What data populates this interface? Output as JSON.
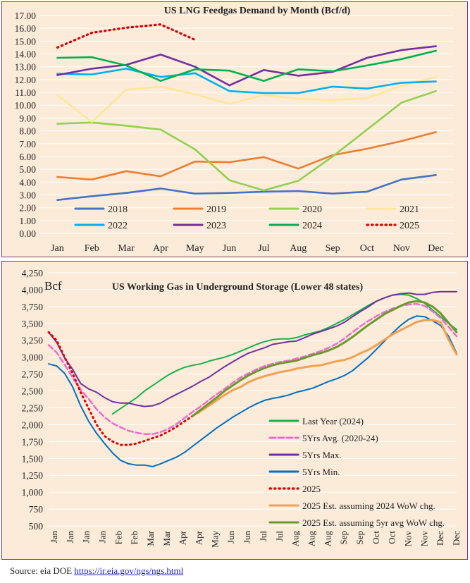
{
  "colors": {
    "panel_bg": "#fcebd9",
    "panel_border": "#6b3d7e",
    "grid": "#ffffff",
    "s2018": "#4472c4",
    "s2019": "#ed7d31",
    "s2020": "#92d050",
    "s2021": "#ffe699",
    "s2022": "#00b0f0",
    "s2023": "#7030a0",
    "s2024": "#00b050",
    "s2025": "#e00000",
    "last_year": "#17b24a",
    "avg5": "#f06ad0",
    "max5": "#7030a0",
    "min5": "#0070c0",
    "est2024": "#f4a050",
    "est5yr": "#6a9a2a"
  },
  "source": {
    "prefix": "Source: eia DOE",
    "link": "https://ir.eia.gov/ngs/ngs.html"
  },
  "chart_data": [
    {
      "type": "line",
      "title": "US LNG Feedgas Demand by Month (Bcf/d)",
      "xlabel": "",
      "ylabel": "",
      "categories": [
        "Jan",
        "Feb",
        "Mar",
        "Apr",
        "May",
        "Jun",
        "Jul",
        "Aug",
        "Sep",
        "Oct",
        "Nov",
        "Dec"
      ],
      "ylim": [
        0,
        17
      ],
      "ytick_step": 1,
      "ytick_labels": [
        "0.00",
        "1.00",
        "2.00",
        "3.00",
        "4.00",
        "5.00",
        "6.00",
        "7.00",
        "8.00",
        "9.00",
        "10.00",
        "11.00",
        "12.00",
        "13.00",
        "14.00",
        "15.00",
        "16.00",
        "17.00"
      ],
      "grid": true,
      "legend_position": "bottom-inside",
      "series": [
        {
          "name": "2018",
          "color_key": "s2018",
          "style": "solid",
          "values": [
            2.6,
            2.9,
            3.15,
            3.5,
            3.1,
            3.15,
            3.25,
            3.3,
            3.1,
            3.25,
            4.2,
            4.55
          ]
        },
        {
          "name": "2019",
          "color_key": "s2019",
          "style": "solid",
          "values": [
            4.4,
            4.2,
            4.85,
            4.45,
            5.6,
            5.55,
            5.95,
            5.05,
            6.1,
            6.6,
            7.2,
            7.9
          ]
        },
        {
          "name": "2020",
          "color_key": "s2020",
          "style": "solid",
          "values": [
            8.55,
            8.65,
            8.4,
            8.1,
            6.55,
            4.15,
            3.35,
            4.1,
            6.0,
            8.1,
            10.2,
            11.1
          ]
        },
        {
          "name": "2021",
          "color_key": "s2021",
          "style": "solid",
          "values": [
            10.8,
            8.7,
            11.2,
            11.45,
            10.85,
            10.1,
            10.8,
            10.5,
            10.4,
            10.55,
            11.5,
            12.2
          ]
        },
        {
          "name": "2022",
          "color_key": "s2022",
          "style": "solid",
          "values": [
            12.45,
            12.4,
            12.85,
            12.2,
            12.5,
            11.1,
            10.95,
            10.95,
            11.45,
            11.3,
            11.75,
            11.85
          ]
        },
        {
          "name": "2023",
          "color_key": "s2023",
          "style": "solid",
          "values": [
            12.35,
            12.85,
            13.15,
            13.95,
            13.0,
            11.55,
            12.75,
            12.3,
            12.6,
            13.7,
            14.3,
            14.6
          ]
        },
        {
          "name": "2024",
          "color_key": "s2024",
          "style": "solid",
          "values": [
            13.7,
            13.75,
            13.1,
            11.9,
            12.8,
            12.7,
            11.9,
            12.8,
            12.65,
            13.1,
            13.6,
            14.25
          ]
        },
        {
          "name": "2025",
          "color_key": "s2025",
          "style": "dotted",
          "values": [
            14.5,
            15.65,
            16.05,
            16.3,
            15.1,
            null,
            null,
            null,
            null,
            null,
            null,
            null
          ]
        }
      ]
    },
    {
      "type": "line",
      "title": "US Working Gas in Underground Storage (Lower 48 states)",
      "xlabel": "",
      "ylabel": "Bcf",
      "categories": [
        "Jan",
        "Jan",
        "Jan",
        "Jan",
        "Feb",
        "Feb",
        "Mar",
        "Mar",
        "Apr",
        "Apr",
        "May",
        "Jun",
        "Jun",
        "Jul",
        "Jul",
        "Aug",
        "Aug",
        "Aug",
        "Sep",
        "Sep",
        "Oct",
        "Oct",
        "Nov",
        "Nov",
        "Dec",
        "Dec"
      ],
      "ylim": [
        500,
        4250
      ],
      "ytick_step": 250,
      "ytick_labels": [
        "500",
        "750",
        "1,000",
        "1,250",
        "1,500",
        "1,750",
        "2,000",
        "2,250",
        "2,500",
        "2,750",
        "3,000",
        "3,250",
        "3,500",
        "3,750",
        "4,000",
        "4,250"
      ],
      "grid": true,
      "legend_position": "bottom-right-inside",
      "series": [
        {
          "name": "Last Year (2024)",
          "color_key": "last_year",
          "style": "solid",
          "width": 2,
          "x": [
            9,
            10,
            11,
            12,
            13,
            14,
            15,
            16,
            17,
            18,
            19,
            20,
            21,
            22,
            23,
            24,
            25,
            26,
            27,
            28,
            29,
            30,
            31,
            32,
            33,
            34,
            35,
            36,
            37,
            38,
            39,
            40,
            41,
            42,
            43,
            44,
            45,
            46,
            47,
            48,
            49,
            50,
            51,
            52
          ],
          "values": [
            2160,
            2240,
            2320,
            2400,
            2500,
            2580,
            2660,
            2740,
            2800,
            2850,
            2880,
            2900,
            2940,
            2970,
            3000,
            3040,
            3090,
            3140,
            3190,
            3230,
            3260,
            3270,
            3270,
            3290,
            3330,
            3360,
            3390,
            3440,
            3500,
            3560,
            3630,
            3700,
            3770,
            3830,
            3880,
            3920,
            3930,
            3920,
            3870,
            3800,
            3700,
            3600,
            3500,
            3410
          ]
        },
        {
          "name": "5Yrs Avg. (2020-24)",
          "color_key": "avg5",
          "style": "dashed",
          "width": 2.5,
          "x": [
            1,
            2,
            3,
            4,
            5,
            6,
            7,
            8,
            9,
            10,
            11,
            12,
            13,
            14,
            15,
            16,
            17,
            18,
            19,
            20,
            21,
            22,
            23,
            24,
            25,
            26,
            27,
            28,
            29,
            30,
            31,
            32,
            33,
            34,
            35,
            36,
            37,
            38,
            39,
            40,
            41,
            42,
            43,
            44,
            45,
            46,
            47,
            48,
            49,
            50,
            51,
            52
          ],
          "values": [
            3180,
            3070,
            2890,
            2700,
            2520,
            2380,
            2230,
            2110,
            2020,
            1960,
            1910,
            1880,
            1860,
            1860,
            1890,
            1940,
            2010,
            2100,
            2190,
            2270,
            2360,
            2450,
            2530,
            2620,
            2700,
            2760,
            2820,
            2870,
            2900,
            2930,
            2950,
            2980,
            3010,
            3050,
            3090,
            3140,
            3200,
            3280,
            3370,
            3460,
            3540,
            3610,
            3670,
            3720,
            3760,
            3780,
            3790,
            3760,
            3680,
            3580,
            3450,
            3310
          ]
        },
        {
          "name": "5Yrs Max.",
          "color_key": "max5",
          "style": "solid",
          "width": 2,
          "x": [
            1,
            2,
            3,
            4,
            5,
            6,
            7,
            8,
            9,
            10,
            11,
            12,
            13,
            14,
            15,
            16,
            17,
            18,
            19,
            20,
            21,
            22,
            23,
            24,
            25,
            26,
            27,
            28,
            29,
            30,
            31,
            32,
            33,
            34,
            35,
            36,
            37,
            38,
            39,
            40,
            41,
            42,
            43,
            44,
            45,
            46,
            47,
            48,
            49,
            50,
            51,
            52
          ],
          "values": [
            3370,
            3220,
            2990,
            2820,
            2610,
            2530,
            2480,
            2400,
            2340,
            2320,
            2320,
            2290,
            2270,
            2280,
            2320,
            2390,
            2450,
            2510,
            2570,
            2640,
            2700,
            2780,
            2860,
            2930,
            3000,
            3060,
            3100,
            3140,
            3190,
            3210,
            3230,
            3240,
            3290,
            3340,
            3380,
            3420,
            3460,
            3520,
            3600,
            3680,
            3750,
            3830,
            3880,
            3920,
            3940,
            3950,
            3930,
            3930,
            3960,
            3970,
            3970,
            3970
          ]
        },
        {
          "name": "5Yrs Min.",
          "color_key": "min5",
          "style": "solid",
          "width": 2,
          "x": [
            1,
            2,
            3,
            4,
            5,
            6,
            7,
            8,
            9,
            10,
            11,
            12,
            13,
            14,
            15,
            16,
            17,
            18,
            19,
            20,
            21,
            22,
            23,
            24,
            25,
            26,
            27,
            28,
            29,
            30,
            31,
            32,
            33,
            34,
            35,
            36,
            37,
            38,
            39,
            40,
            41,
            42,
            43,
            44,
            45,
            46,
            47,
            48,
            49,
            50,
            51,
            52
          ],
          "values": [
            2900,
            2870,
            2760,
            2560,
            2280,
            2050,
            1870,
            1720,
            1580,
            1470,
            1420,
            1400,
            1400,
            1380,
            1420,
            1470,
            1520,
            1590,
            1680,
            1770,
            1860,
            1950,
            2030,
            2110,
            2180,
            2250,
            2310,
            2360,
            2390,
            2410,
            2440,
            2480,
            2510,
            2540,
            2590,
            2640,
            2680,
            2730,
            2800,
            2900,
            3000,
            3120,
            3240,
            3360,
            3470,
            3560,
            3610,
            3600,
            3540,
            3470,
            3310,
            3060
          ]
        },
        {
          "name": "2025",
          "color_key": "s2025",
          "style": "dotted",
          "width": 3,
          "x": [
            1,
            2,
            3,
            4,
            5,
            6,
            7,
            8,
            9,
            10,
            11,
            12,
            13,
            14,
            15,
            16,
            17,
            18,
            19
          ],
          "values": [
            3370,
            3250,
            3000,
            2760,
            2480,
            2240,
            2000,
            1830,
            1750,
            1700,
            1700,
            1720,
            1760,
            1800,
            1840,
            1900,
            1970,
            2050,
            2130
          ]
        },
        {
          "name": "2025 Est. assuming 2024 WoW chg.",
          "color_key": "est2024",
          "style": "solid",
          "width": 3,
          "x": [
            19,
            20,
            21,
            22,
            23,
            24,
            25,
            26,
            27,
            28,
            29,
            30,
            31,
            32,
            33,
            34,
            35,
            36,
            37,
            38,
            39,
            40,
            41,
            42,
            43,
            44,
            45,
            46,
            47,
            48,
            49,
            50,
            51,
            52
          ],
          "values": [
            2130,
            2200,
            2280,
            2360,
            2440,
            2510,
            2560,
            2630,
            2680,
            2720,
            2750,
            2780,
            2800,
            2830,
            2850,
            2870,
            2880,
            2910,
            2940,
            2960,
            3000,
            3060,
            3110,
            3180,
            3260,
            3340,
            3400,
            3460,
            3520,
            3550,
            3550,
            3520,
            3260,
            3040
          ]
        },
        {
          "name": "2025 Est. assuming 5yr avg WoW chg.",
          "color_key": "est5yr",
          "style": "solid",
          "width": 3,
          "x": [
            19,
            20,
            21,
            22,
            23,
            24,
            25,
            26,
            27,
            28,
            29,
            30,
            31,
            32,
            33,
            34,
            35,
            36,
            37,
            38,
            39,
            40,
            41,
            42,
            43,
            44,
            45,
            46,
            47,
            48,
            49,
            50,
            51,
            52
          ],
          "values": [
            2130,
            2220,
            2310,
            2400,
            2500,
            2580,
            2660,
            2730,
            2790,
            2840,
            2880,
            2910,
            2930,
            2950,
            2990,
            3030,
            3060,
            3100,
            3150,
            3220,
            3300,
            3390,
            3480,
            3560,
            3640,
            3700,
            3760,
            3810,
            3830,
            3810,
            3750,
            3650,
            3510,
            3370
          ]
        }
      ]
    }
  ]
}
